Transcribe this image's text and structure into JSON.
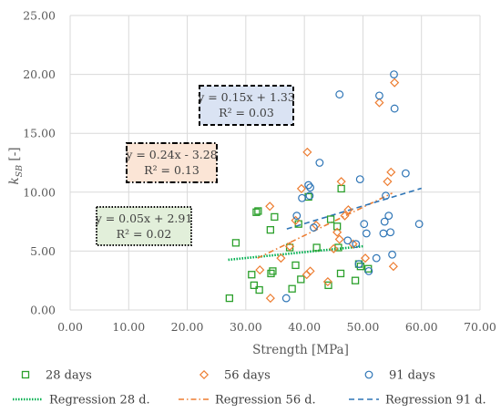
{
  "chart_data": {
    "type": "scatter",
    "xlabel": "Strength [MPa]",
    "ylabel": "k",
    "ylabel_sub": "SB",
    "ylabel_unit": " [-]",
    "xlim": [
      0,
      70
    ],
    "ylim": [
      0,
      25
    ],
    "x_ticks": [
      "0.00",
      "10.00",
      "20.00",
      "30.00",
      "40.00",
      "50.00",
      "60.00",
      "70.00"
    ],
    "y_ticks": [
      "0.00",
      "5.00",
      "10.00",
      "15.00",
      "20.00",
      "25.00"
    ],
    "grid": true,
    "legend_position": "bottom",
    "series": [
      {
        "name": "28 days",
        "marker": "square",
        "color": "#2ca02c",
        "points": [
          [
            27.2,
            1.0
          ],
          [
            28.3,
            5.7
          ],
          [
            31.0,
            3.0
          ],
          [
            31.4,
            2.1
          ],
          [
            31.8,
            8.3
          ],
          [
            32.1,
            8.4
          ],
          [
            32.3,
            1.7
          ],
          [
            34.2,
            6.8
          ],
          [
            34.3,
            3.1
          ],
          [
            34.6,
            3.3
          ],
          [
            34.9,
            7.9
          ],
          [
            37.5,
            5.3
          ],
          [
            37.9,
            1.8
          ],
          [
            38.5,
            3.8
          ],
          [
            39.0,
            7.3
          ],
          [
            39.4,
            2.6
          ],
          [
            40.7,
            9.6
          ],
          [
            42.1,
            5.3
          ],
          [
            44.1,
            2.1
          ],
          [
            44.5,
            7.7
          ],
          [
            45.6,
            7.1
          ],
          [
            45.8,
            5.3
          ],
          [
            46.2,
            3.1
          ],
          [
            46.3,
            10.3
          ],
          [
            48.7,
            2.5
          ],
          [
            49.3,
            3.9
          ],
          [
            49.6,
            3.7
          ],
          [
            50.9,
            3.5
          ]
        ]
      },
      {
        "name": "56 days",
        "marker": "diamond",
        "color": "#ed7d31",
        "points": [
          [
            32.4,
            3.4
          ],
          [
            34.1,
            8.8
          ],
          [
            34.2,
            1.0
          ],
          [
            36.0,
            4.4
          ],
          [
            37.5,
            5.4
          ],
          [
            38.5,
            7.6
          ],
          [
            39.5,
            10.3
          ],
          [
            40.4,
            3.0
          ],
          [
            40.5,
            13.4
          ],
          [
            41.0,
            3.3
          ],
          [
            42.0,
            7.2
          ],
          [
            44.0,
            2.4
          ],
          [
            45.0,
            5.2
          ],
          [
            45.6,
            6.6
          ],
          [
            46.0,
            6.0
          ],
          [
            46.3,
            10.9
          ],
          [
            46.9,
            8.0
          ],
          [
            47.5,
            8.5
          ],
          [
            48.3,
            5.6
          ],
          [
            50.4,
            4.4
          ],
          [
            52.8,
            17.6
          ],
          [
            54.2,
            10.9
          ],
          [
            54.8,
            11.7
          ],
          [
            55.2,
            3.7
          ],
          [
            55.4,
            19.3
          ]
        ]
      },
      {
        "name": "91 days",
        "marker": "circle",
        "color": "#2e75b6",
        "points": [
          [
            36.9,
            1.0
          ],
          [
            38.7,
            8.0
          ],
          [
            39.6,
            9.5
          ],
          [
            40.7,
            10.6
          ],
          [
            40.9,
            9.7
          ],
          [
            41.0,
            10.4
          ],
          [
            41.6,
            7.0
          ],
          [
            42.6,
            12.5
          ],
          [
            46.0,
            18.3
          ],
          [
            47.4,
            5.9
          ],
          [
            48.8,
            5.6
          ],
          [
            49.3,
            3.9
          ],
          [
            49.5,
            11.1
          ],
          [
            50.2,
            7.3
          ],
          [
            50.6,
            6.5
          ],
          [
            51.0,
            3.3
          ],
          [
            52.3,
            4.4
          ],
          [
            52.8,
            18.2
          ],
          [
            53.5,
            6.5
          ],
          [
            53.7,
            7.5
          ],
          [
            53.9,
            9.7
          ],
          [
            54.4,
            8.0
          ],
          [
            54.7,
            6.6
          ],
          [
            55.0,
            4.7
          ],
          [
            55.3,
            20.0
          ],
          [
            55.4,
            17.1
          ],
          [
            57.3,
            11.6
          ],
          [
            59.6,
            7.3
          ]
        ]
      }
    ],
    "regressions": [
      {
        "name": "Regression 28 d.",
        "color": "#00b050",
        "style": "dotted",
        "x_range": [
          27,
          50
        ],
        "slope": 0.05,
        "intercept": 2.91,
        "equation": "y = 0.05x + 2.91",
        "r2": "R² = 0.02",
        "box_fill": "#e2efda",
        "box_border": "#000000"
      },
      {
        "name": "Regression 56 d.",
        "color": "#ed7d31",
        "style": "dashdot",
        "x_range": [
          32,
          55
        ],
        "slope": 0.24,
        "intercept": -3.28,
        "equation": "y = 0.24x - 3.28",
        "r2": "R² = 0.13",
        "box_fill": "#fbe5d6",
        "box_border": "#000000"
      },
      {
        "name": "Regression 91 d.",
        "color": "#2e75b6",
        "style": "dashed",
        "x_range": [
          37,
          60
        ],
        "slope": 0.15,
        "intercept": 1.33,
        "equation": "y = 0.15x + 1.33",
        "r2": "R² = 0.03",
        "box_fill": "#dae3f3",
        "box_border": "#000000"
      }
    ]
  }
}
